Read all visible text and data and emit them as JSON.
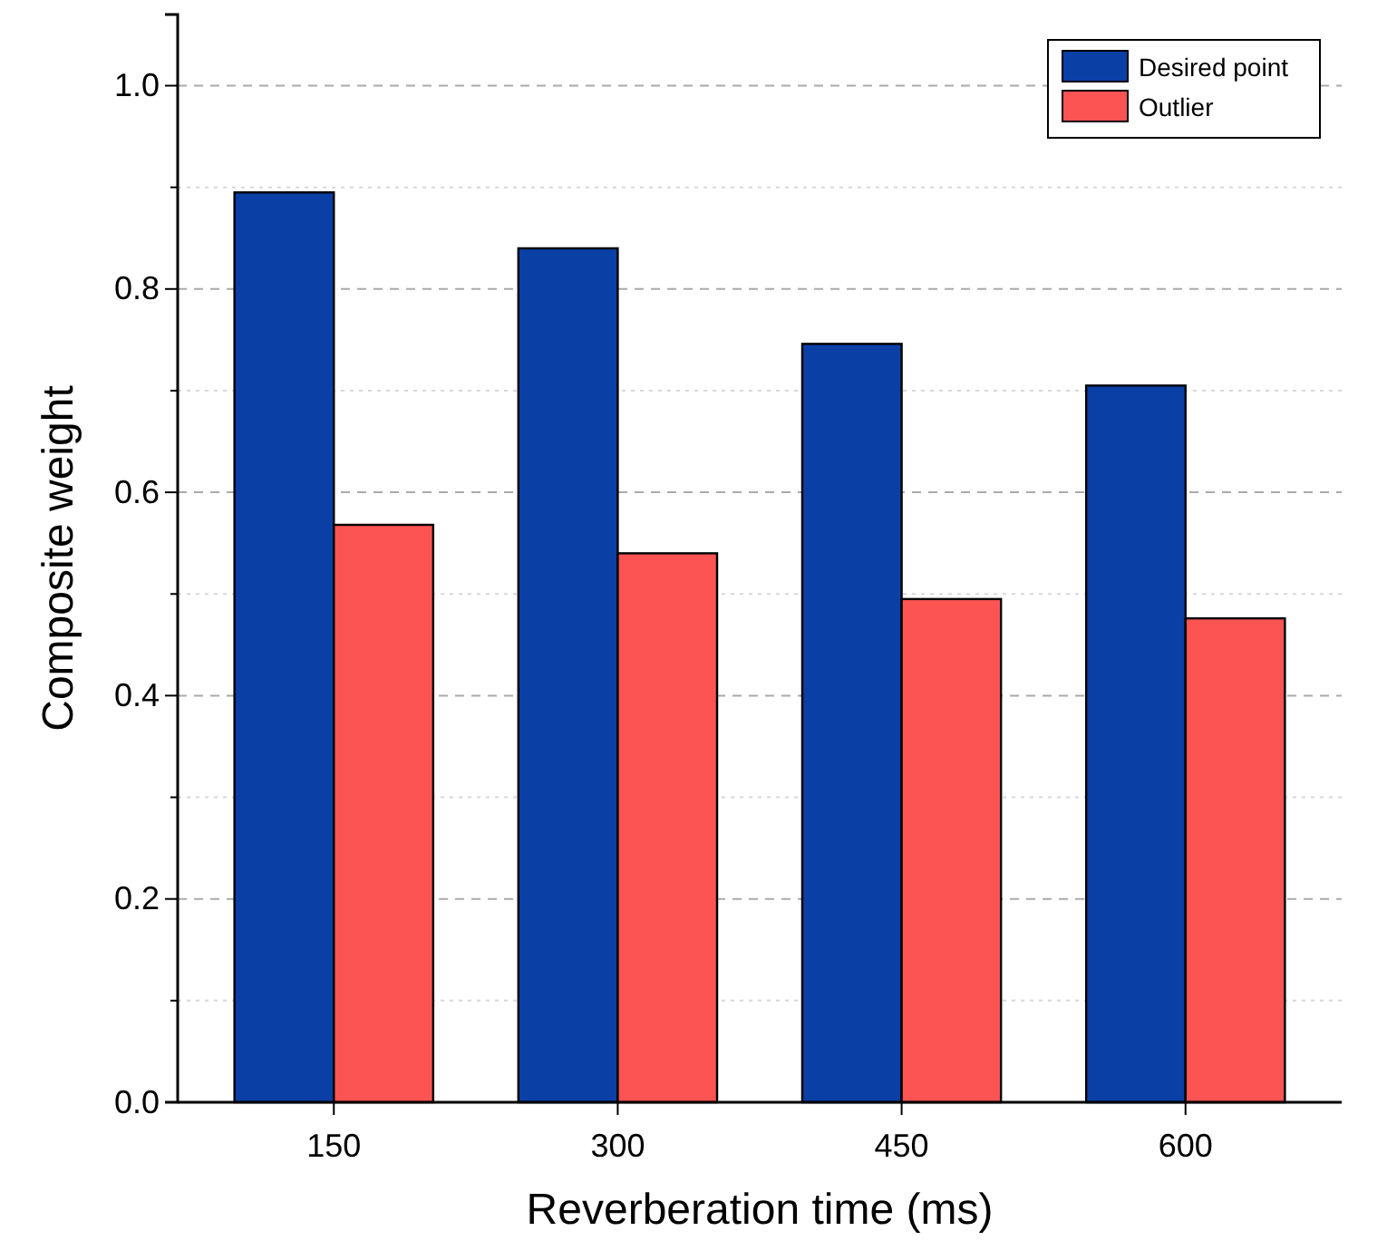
{
  "chart_data": {
    "type": "bar",
    "xlabel": "Reverberation time (ms)",
    "ylabel": "Composite weight",
    "categories": [
      "150",
      "300",
      "450",
      "600"
    ],
    "series": [
      {
        "name": "Desired point",
        "color": "#0a3fa6",
        "values": [
          0.895,
          0.84,
          0.746,
          0.705
        ]
      },
      {
        "name": "Outlier",
        "color": "#fc5353",
        "values": [
          0.568,
          0.54,
          0.495,
          0.476
        ]
      }
    ],
    "ylim": [
      0,
      1.07
    ],
    "yticks": [
      {
        "value": 0,
        "label": "0.0"
      },
      {
        "value": 0.1,
        "label": null
      },
      {
        "value": 0.2,
        "label": "0.2"
      },
      {
        "value": 0.3,
        "label": null
      },
      {
        "value": 0.4,
        "label": "0.4"
      },
      {
        "value": 0.5,
        "label": null
      },
      {
        "value": 0.6,
        "label": "0.6"
      },
      {
        "value": 0.7,
        "label": null
      },
      {
        "value": 0.8,
        "label": "0.8"
      },
      {
        "value": 0.9,
        "label": null
      },
      {
        "value": 1,
        "label": "1.0"
      }
    ],
    "grid": "y",
    "legend": "top right"
  }
}
